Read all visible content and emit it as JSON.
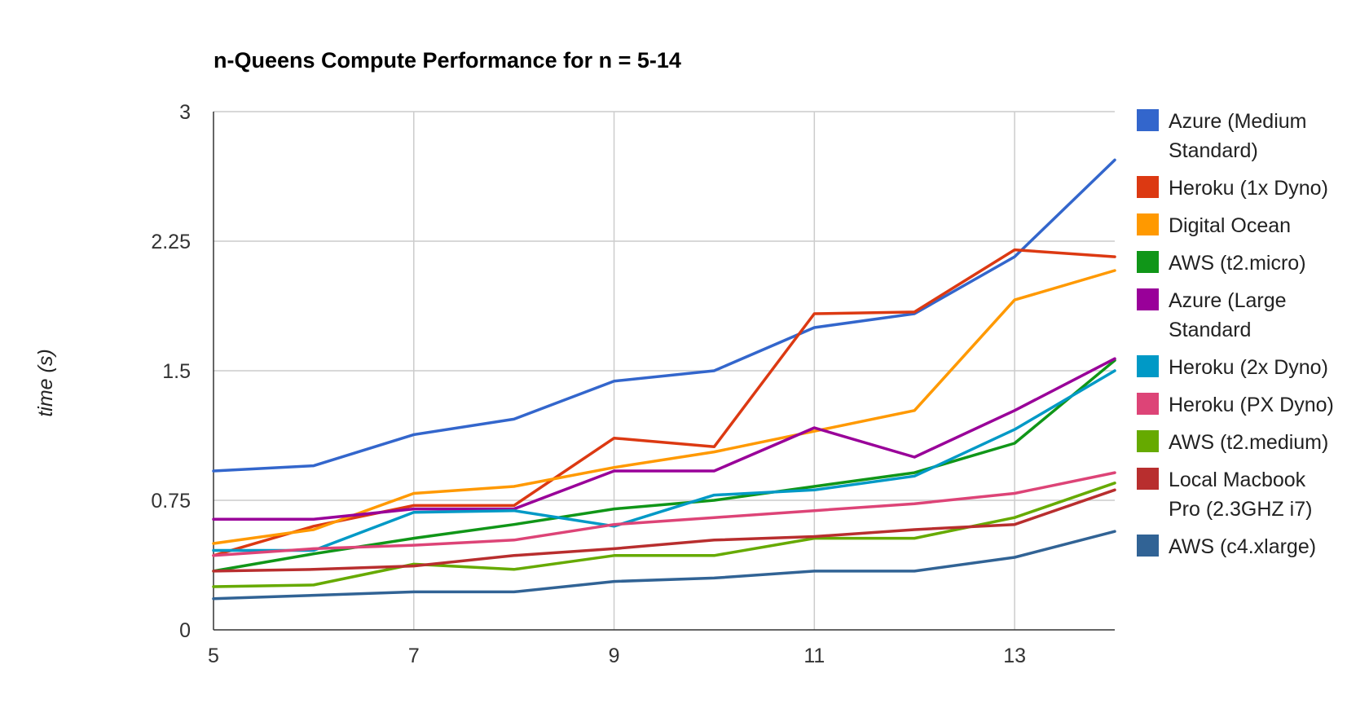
{
  "chart_data": {
    "type": "line",
    "title": "n-Queens Compute Performance for n = 5-14",
    "xlabel": "",
    "ylabel": "time (s)",
    "x": [
      5,
      6,
      7,
      8,
      9,
      10,
      11,
      12,
      13,
      14
    ],
    "x_ticks": [
      "5",
      "7",
      "9",
      "11",
      "13"
    ],
    "x_tick_values": [
      5,
      7,
      9,
      11,
      13
    ],
    "y_ticks": [
      "0",
      "0.75",
      "1.5",
      "2.25",
      "3"
    ],
    "y_tick_values": [
      0,
      0.75,
      1.5,
      2.25,
      3
    ],
    "xlim": [
      5,
      14
    ],
    "ylim": [
      0,
      3
    ],
    "grid": true,
    "legend_position": "right",
    "series": [
      {
        "name": "Azure (Medium Standard)",
        "legend_lines": [
          "Azure (Medium",
          "Standard)"
        ],
        "color": "#3366cc",
        "values": [
          0.92,
          0.95,
          1.13,
          1.22,
          1.44,
          1.5,
          1.75,
          1.83,
          2.16,
          2.72
        ]
      },
      {
        "name": "Heroku (1x Dyno)",
        "legend_lines": [
          "Heroku (1x Dyno)"
        ],
        "color": "#dc3912",
        "values": [
          0.43,
          0.6,
          0.72,
          0.72,
          1.11,
          1.06,
          1.83,
          1.84,
          2.2,
          2.16
        ]
      },
      {
        "name": "Digital Ocean",
        "legend_lines": [
          "Digital Ocean"
        ],
        "color": "#ff9900",
        "values": [
          0.5,
          0.58,
          0.79,
          0.83,
          0.94,
          1.03,
          1.15,
          1.27,
          1.91,
          2.08
        ]
      },
      {
        "name": "AWS (t2.micro)",
        "legend_lines": [
          "AWS (t2.micro)"
        ],
        "color": "#109618",
        "values": [
          0.34,
          0.44,
          0.53,
          0.61,
          0.7,
          0.75,
          0.83,
          0.91,
          1.08,
          1.56
        ]
      },
      {
        "name": "Azure (Large Standard",
        "legend_lines": [
          "Azure (Large",
          "Standard"
        ],
        "color": "#990099",
        "values": [
          0.64,
          0.64,
          0.7,
          0.7,
          0.92,
          0.92,
          1.17,
          1.0,
          1.27,
          1.57
        ]
      },
      {
        "name": "Heroku (2x Dyno)",
        "legend_lines": [
          "Heroku (2x Dyno)"
        ],
        "color": "#0099c6",
        "values": [
          0.46,
          0.46,
          0.68,
          0.69,
          0.6,
          0.78,
          0.81,
          0.89,
          1.16,
          1.5
        ]
      },
      {
        "name": "Heroku (PX Dyno)",
        "legend_lines": [
          "Heroku (PX Dyno)"
        ],
        "color": "#dd4477",
        "values": [
          0.43,
          0.47,
          0.49,
          0.52,
          0.61,
          0.65,
          0.69,
          0.73,
          0.79,
          0.91
        ]
      },
      {
        "name": "AWS (t2.medium)",
        "legend_lines": [
          "AWS (t2.medium)"
        ],
        "color": "#66aa00",
        "values": [
          0.25,
          0.26,
          0.38,
          0.35,
          0.43,
          0.43,
          0.53,
          0.53,
          0.65,
          0.85
        ]
      },
      {
        "name": "Local Macbook Pro (2.3GHZ i7)",
        "legend_lines": [
          "Local Macbook",
          "Pro (2.3GHZ i7)"
        ],
        "color": "#b82e2e",
        "values": [
          0.34,
          0.35,
          0.37,
          0.43,
          0.47,
          0.52,
          0.54,
          0.58,
          0.61,
          0.81
        ]
      },
      {
        "name": "AWS (c4.xlarge)",
        "legend_lines": [
          "AWS (c4.xlarge)"
        ],
        "color": "#316395",
        "values": [
          0.18,
          0.2,
          0.22,
          0.22,
          0.28,
          0.3,
          0.34,
          0.34,
          0.42,
          0.57
        ]
      }
    ]
  }
}
